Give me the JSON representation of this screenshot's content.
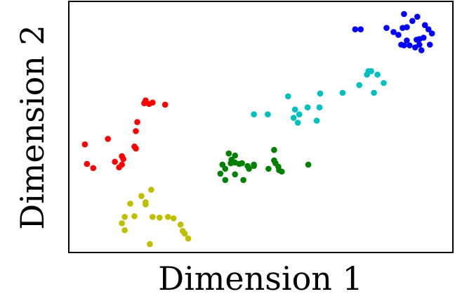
{
  "chart_data": {
    "type": "scatter",
    "title": "",
    "xlabel": "Dimension 1",
    "ylabel": "Dimension 2",
    "xlim": [
      0,
      550
    ],
    "ylim": [
      0,
      360
    ],
    "grid": false,
    "legend": "none",
    "show_ticks": false,
    "series": [
      {
        "color": "#ff0000",
        "points": [
          [
            110,
            218
          ],
          [
            108,
            214
          ],
          [
            115,
            213
          ],
          [
            120,
            215
          ],
          [
            138,
            212
          ],
          [
            98,
            187
          ],
          [
            96,
            174
          ],
          [
            56,
            163
          ],
          [
            23,
            155
          ],
          [
            76,
            138
          ],
          [
            96,
            149
          ],
          [
            94,
            152
          ],
          [
            66,
            130
          ],
          [
            76,
            126
          ],
          [
            78,
            134
          ],
          [
            72,
            122
          ],
          [
            35,
            121
          ],
          [
            26,
            127
          ]
        ]
      },
      {
        "color": "#bfbf00",
        "points": [
          [
            118,
            90
          ],
          [
            104,
            81
          ],
          [
            110,
            72
          ],
          [
            88,
            70
          ],
          [
            94,
            52
          ],
          [
            80,
            51
          ],
          [
            76,
            42
          ],
          [
            80,
            32
          ],
          [
            116,
            12
          ],
          [
            110,
            69
          ],
          [
            120,
            51
          ],
          [
            130,
            50
          ],
          [
            142,
            51
          ],
          [
            150,
            49
          ],
          [
            160,
            40
          ],
          [
            163,
            31
          ],
          [
            166,
            27
          ],
          [
            171,
            20
          ]
        ]
      },
      {
        "color": "#008000",
        "points": [
          [
            229,
            142
          ],
          [
            233,
            133
          ],
          [
            238,
            139
          ],
          [
            238,
            129
          ],
          [
            232,
            128
          ],
          [
            220,
            126
          ],
          [
            224,
            120
          ],
          [
            217,
            113
          ],
          [
            224,
            104
          ],
          [
            238,
            112
          ],
          [
            250,
            104
          ],
          [
            258,
            120
          ],
          [
            244,
            127
          ],
          [
            248,
            128
          ],
          [
            265,
            124
          ],
          [
            286,
            120
          ],
          [
            294,
            147
          ],
          [
            294,
            132
          ],
          [
            300,
            123
          ],
          [
            296,
            128
          ],
          [
            305,
            116
          ],
          [
            301,
            118
          ],
          [
            343,
            126
          ],
          [
            256,
            124
          ],
          [
            265,
            126
          ]
        ]
      },
      {
        "color": "#00bfbf",
        "points": [
          [
            265,
            198
          ],
          [
            285,
            198
          ],
          [
            314,
            224
          ],
          [
            324,
            205
          ],
          [
            330,
            198
          ],
          [
            322,
            193
          ],
          [
            342,
            208
          ],
          [
            328,
            186
          ],
          [
            359,
            208
          ],
          [
            355,
            189
          ],
          [
            360,
            228
          ],
          [
            392,
            229
          ],
          [
            416,
            240
          ],
          [
            429,
            260
          ],
          [
            433,
            260
          ],
          [
            427,
            255
          ],
          [
            442,
            255
          ],
          [
            451,
            243
          ],
          [
            437,
            229
          ]
        ]
      },
      {
        "color": "#0000ff",
        "points": [
          [
            410,
            320
          ],
          [
            418,
            320
          ],
          [
            455,
            322
          ],
          [
            465,
            316
          ],
          [
            472,
            312
          ],
          [
            478,
            322
          ],
          [
            484,
            323
          ],
          [
            480,
            342
          ],
          [
            492,
            332
          ],
          [
            499,
            338
          ],
          [
            510,
            326
          ],
          [
            520,
            314
          ],
          [
            515,
            320
          ],
          [
            508,
            308
          ],
          [
            498,
            305
          ],
          [
            484,
            304
          ],
          [
            476,
            298
          ],
          [
            480,
            297
          ],
          [
            488,
            297
          ],
          [
            502,
            306
          ],
          [
            496,
            294
          ],
          [
            502,
            298
          ],
          [
            517,
            298
          ],
          [
            505,
            290
          ]
        ]
      }
    ]
  }
}
